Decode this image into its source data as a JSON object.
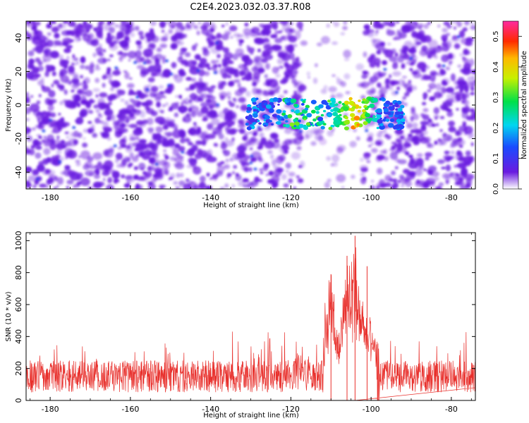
{
  "title": "C2E4.2023.032.03.37.R08",
  "colors": {
    "snr_line": "#e8302c",
    "axis": "#000000",
    "background": "#ffffff",
    "spectrogram_base": "#6a1be0"
  },
  "chart_data": [
    {
      "type": "heatmap",
      "name": "spectrogram",
      "xlabel": "Height of straight line (km)",
      "ylabel": "Frequency (Hz)",
      "xlim": [
        -186,
        -74
      ],
      "ylim": [
        -50,
        50
      ],
      "x_ticks": [
        -180,
        -160,
        -140,
        -120,
        -100,
        -80
      ],
      "y_ticks": [
        -40,
        -20,
        0,
        20,
        40
      ],
      "colorbar": {
        "label": "Normalized spectral amplitude",
        "range": [
          0,
          0.55
        ],
        "ticks": [
          0.0,
          0.1,
          0.2,
          0.3,
          0.4,
          0.5
        ]
      },
      "features": {
        "low_signal_band_km": [
          -117,
          -102
        ],
        "echo_band_km": [
          -131,
          -92
        ],
        "echo_frequency_hz": [
          -10,
          0
        ],
        "peak_amplitude_km": -104,
        "peak_amplitude": 0.5
      }
    },
    {
      "type": "line",
      "name": "snr",
      "xlabel": "Height of straight line (km)",
      "ylabel": "SNR (10 * v/v)",
      "xlim": [
        -186,
        -74
      ],
      "ylim": [
        0,
        1050
      ],
      "x_ticks": [
        -180,
        -160,
        -140,
        -120,
        -100,
        -80
      ],
      "y_ticks": [
        0,
        200,
        400,
        600,
        800,
        1000
      ],
      "series": [
        {
          "name": "SNR",
          "baseline_range": [
            50,
            250
          ],
          "peaks": [
            {
              "x": -104,
              "y": 1030
            },
            {
              "x": -106,
              "y": 905
            },
            {
              "x": -110,
              "y": 790
            },
            {
              "x": -101,
              "y": 840
            }
          ]
        }
      ]
    }
  ]
}
